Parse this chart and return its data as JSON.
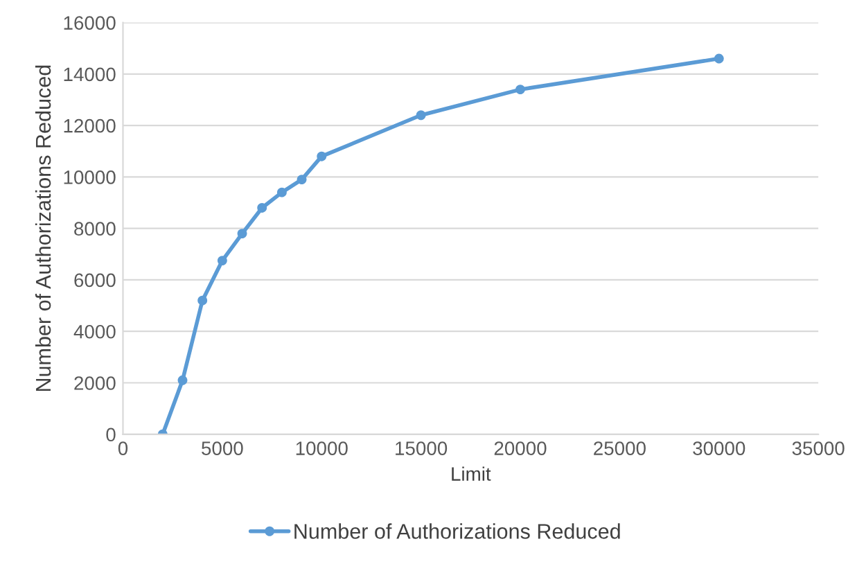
{
  "chart_data": {
    "type": "line",
    "xlabel": "Limit",
    "ylabel": "Number of Authorizations Reduced",
    "x": [
      2000,
      3000,
      4000,
      5000,
      6000,
      7000,
      8000,
      9000,
      10000,
      15000,
      20000,
      30000
    ],
    "series": [
      {
        "name": "Number of Authorizations Reduced",
        "color": "#5b9bd5",
        "values": [
          0,
          2100,
          5200,
          6750,
          7800,
          8800,
          9400,
          9900,
          10800,
          12400,
          13400,
          14600
        ]
      }
    ],
    "xlim": [
      0,
      35000
    ],
    "xticks": [
      0,
      5000,
      10000,
      15000,
      20000,
      25000,
      30000,
      35000
    ],
    "ylim": [
      0,
      16000
    ],
    "yticks": [
      0,
      2000,
      4000,
      6000,
      8000,
      10000,
      12000,
      14000,
      16000
    ],
    "grid": "y",
    "legend": "bottom",
    "marker": "circle",
    "line_style": "solid"
  }
}
